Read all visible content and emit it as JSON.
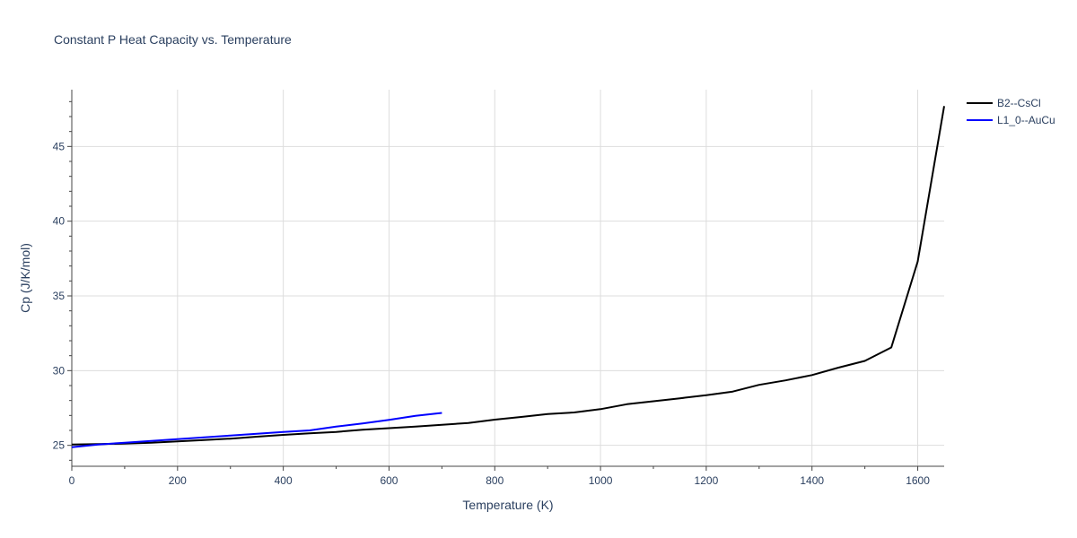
{
  "chart_data": {
    "type": "line",
    "title": "Constant P Heat Capacity vs. Temperature",
    "xlabel": "Temperature (K)",
    "ylabel": "Cp (J/K/mol)",
    "xlim": [
      0,
      1650
    ],
    "ylim": [
      23.6,
      48.8
    ],
    "xticks": [
      0,
      200,
      400,
      600,
      800,
      1000,
      1200,
      1400,
      1600
    ],
    "yticks": [
      25,
      30,
      35,
      40,
      45
    ],
    "grid": true,
    "legend_position": "top-right",
    "series": [
      {
        "name": "B2--CsCl",
        "color": "#000000",
        "x": [
          0,
          50,
          100,
          150,
          200,
          250,
          300,
          350,
          400,
          450,
          500,
          550,
          600,
          650,
          700,
          750,
          800,
          850,
          900,
          950,
          1000,
          1050,
          1100,
          1150,
          1200,
          1250,
          1300,
          1350,
          1400,
          1450,
          1500,
          1550,
          1600,
          1650
        ],
        "y": [
          25.05,
          25.08,
          25.12,
          25.18,
          25.26,
          25.35,
          25.45,
          25.58,
          25.7,
          25.8,
          25.9,
          26.04,
          26.15,
          26.26,
          26.38,
          26.5,
          26.72,
          26.9,
          27.1,
          27.2,
          27.42,
          27.75,
          27.95,
          28.15,
          28.35,
          28.6,
          29.05,
          29.35,
          29.7,
          30.2,
          30.65,
          31.55,
          37.3,
          47.7
        ]
      },
      {
        "name": "L1_0--AuCu",
        "color": "#0000ff",
        "x": [
          0,
          50,
          100,
          150,
          200,
          250,
          300,
          350,
          400,
          450,
          500,
          550,
          600,
          650,
          700
        ],
        "y": [
          24.88,
          25.05,
          25.18,
          25.3,
          25.42,
          25.54,
          25.66,
          25.78,
          25.9,
          26.0,
          26.25,
          26.47,
          26.7,
          26.97,
          27.17
        ]
      }
    ]
  }
}
